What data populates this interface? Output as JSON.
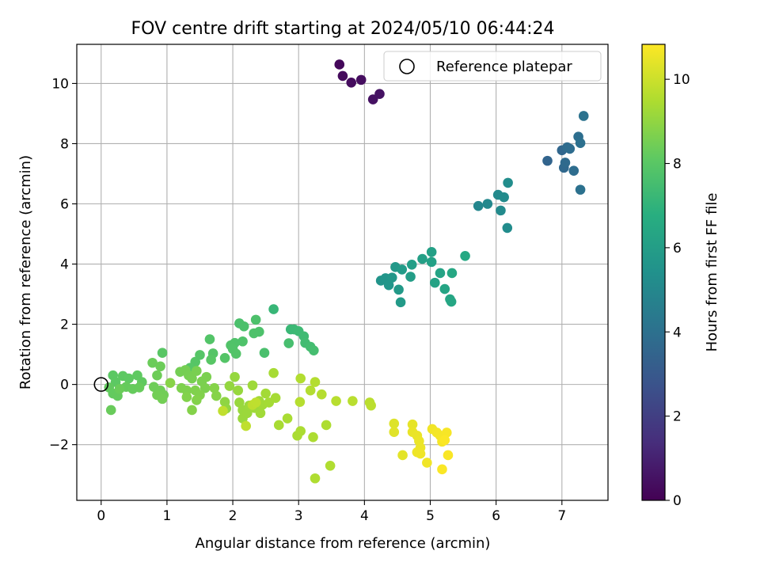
{
  "chart_data": {
    "type": "scatter",
    "title": "FOV centre drift starting at 2024/05/10 06:44:24",
    "xlabel": "Angular distance from reference (arcmin)",
    "ylabel": "Rotation from reference (arcmin)",
    "xlim": [
      -0.37,
      7.7
    ],
    "ylim": [
      -3.85,
      11.3
    ],
    "xticks": [
      0,
      1,
      2,
      3,
      4,
      5,
      6,
      7
    ],
    "xtick_labels": [
      "0",
      "1",
      "2",
      "3",
      "4",
      "5",
      "6",
      "7"
    ],
    "yticks": [
      -2,
      0,
      2,
      4,
      6,
      8,
      10
    ],
    "ytick_labels": [
      "−2",
      "0",
      "2",
      "4",
      "6",
      "8",
      "10"
    ],
    "grid": true,
    "legend_position": "top-right",
    "reference": {
      "name": "Reference platepar",
      "x": 0,
      "y": 0
    },
    "colorbar": {
      "label": "Hours from first FF file",
      "colormap": "viridis",
      "range": [
        0,
        10.83
      ],
      "ticks": [
        0,
        2,
        4,
        6,
        8,
        10
      ],
      "tick_labels": [
        "0",
        "2",
        "4",
        "6",
        "8",
        "10"
      ]
    },
    "points": [
      {
        "x": 3.62,
        "y": 10.63,
        "t": 0.2
      },
      {
        "x": 3.67,
        "y": 10.25,
        "t": 0.3
      },
      {
        "x": 3.8,
        "y": 10.03,
        "t": 0.35
      },
      {
        "x": 3.95,
        "y": 10.12,
        "t": 0.4
      },
      {
        "x": 4.13,
        "y": 9.47,
        "t": 0.5
      },
      {
        "x": 4.23,
        "y": 9.65,
        "t": 0.55
      },
      {
        "x": 6.78,
        "y": 7.43,
        "t": 3.5
      },
      {
        "x": 7.0,
        "y": 7.78,
        "t": 3.6
      },
      {
        "x": 7.03,
        "y": 7.2,
        "t": 3.7
      },
      {
        "x": 7.05,
        "y": 7.37,
        "t": 3.75
      },
      {
        "x": 7.08,
        "y": 7.88,
        "t": 3.8
      },
      {
        "x": 7.12,
        "y": 7.83,
        "t": 3.85
      },
      {
        "x": 7.18,
        "y": 7.1,
        "t": 3.9
      },
      {
        "x": 7.25,
        "y": 8.23,
        "t": 3.95
      },
      {
        "x": 7.28,
        "y": 8.02,
        "t": 4.0
      },
      {
        "x": 7.28,
        "y": 6.47,
        "t": 4.05
      },
      {
        "x": 7.33,
        "y": 8.92,
        "t": 4.1
      },
      {
        "x": 5.73,
        "y": 5.93,
        "t": 5.0
      },
      {
        "x": 5.87,
        "y": 6.0,
        "t": 5.05
      },
      {
        "x": 6.03,
        "y": 6.3,
        "t": 5.1
      },
      {
        "x": 6.07,
        "y": 5.78,
        "t": 5.15
      },
      {
        "x": 6.12,
        "y": 6.22,
        "t": 5.2
      },
      {
        "x": 6.17,
        "y": 5.2,
        "t": 5.25
      },
      {
        "x": 6.18,
        "y": 6.7,
        "t": 5.3
      },
      {
        "x": 4.25,
        "y": 3.45,
        "t": 5.6
      },
      {
        "x": 4.32,
        "y": 3.53,
        "t": 5.65
      },
      {
        "x": 4.37,
        "y": 3.3,
        "t": 5.7
      },
      {
        "x": 4.42,
        "y": 3.55,
        "t": 5.75
      },
      {
        "x": 4.47,
        "y": 3.9,
        "t": 5.8
      },
      {
        "x": 4.52,
        "y": 3.15,
        "t": 5.85
      },
      {
        "x": 4.55,
        "y": 2.73,
        "t": 5.9
      },
      {
        "x": 4.57,
        "y": 3.82,
        "t": 5.95
      },
      {
        "x": 4.7,
        "y": 3.58,
        "t": 6.0
      },
      {
        "x": 4.72,
        "y": 3.98,
        "t": 6.05
      },
      {
        "x": 4.88,
        "y": 4.17,
        "t": 6.1
      },
      {
        "x": 5.02,
        "y": 4.4,
        "t": 6.15
      },
      {
        "x": 5.02,
        "y": 4.07,
        "t": 6.2
      },
      {
        "x": 5.07,
        "y": 3.38,
        "t": 6.25
      },
      {
        "x": 5.15,
        "y": 3.7,
        "t": 6.3
      },
      {
        "x": 5.22,
        "y": 3.17,
        "t": 6.35
      },
      {
        "x": 5.3,
        "y": 2.83,
        "t": 6.4
      },
      {
        "x": 5.32,
        "y": 2.75,
        "t": 6.45
      },
      {
        "x": 5.33,
        "y": 3.7,
        "t": 6.5
      },
      {
        "x": 5.53,
        "y": 4.27,
        "t": 6.55
      },
      {
        "x": 2.62,
        "y": 2.5,
        "t": 7.2
      },
      {
        "x": 2.88,
        "y": 1.83,
        "t": 7.25
      },
      {
        "x": 2.93,
        "y": 1.83,
        "t": 7.3
      },
      {
        "x": 3.0,
        "y": 1.77,
        "t": 7.35
      },
      {
        "x": 3.08,
        "y": 1.6,
        "t": 7.4
      },
      {
        "x": 3.1,
        "y": 1.38,
        "t": 7.45
      },
      {
        "x": 3.18,
        "y": 1.25,
        "t": 7.5
      },
      {
        "x": 3.23,
        "y": 1.13,
        "t": 7.55
      },
      {
        "x": 2.85,
        "y": 1.37,
        "t": 7.6
      },
      {
        "x": 2.48,
        "y": 1.05,
        "t": 7.65
      },
      {
        "x": 2.1,
        "y": 2.03,
        "t": 7.7
      },
      {
        "x": 2.17,
        "y": 1.93,
        "t": 7.72
      },
      {
        "x": 2.35,
        "y": 2.15,
        "t": 7.74
      },
      {
        "x": 2.4,
        "y": 1.75,
        "t": 7.76
      },
      {
        "x": 2.32,
        "y": 1.7,
        "t": 7.78
      },
      {
        "x": 2.15,
        "y": 1.43,
        "t": 7.8
      },
      {
        "x": 2.03,
        "y": 1.38,
        "t": 7.82
      },
      {
        "x": 1.97,
        "y": 1.3,
        "t": 7.84
      },
      {
        "x": 2.0,
        "y": 1.18,
        "t": 7.86
      },
      {
        "x": 2.05,
        "y": 1.02,
        "t": 7.88
      },
      {
        "x": 1.65,
        "y": 1.5,
        "t": 7.9
      },
      {
        "x": 1.88,
        "y": 0.88,
        "t": 7.92
      },
      {
        "x": 1.7,
        "y": 1.03,
        "t": 7.94
      },
      {
        "x": 1.5,
        "y": 0.98,
        "t": 7.96
      },
      {
        "x": 1.43,
        "y": 0.75,
        "t": 7.98
      },
      {
        "x": 1.35,
        "y": 0.55,
        "t": 8.0
      },
      {
        "x": 1.67,
        "y": 0.82,
        "t": 8.02
      },
      {
        "x": 0.93,
        "y": 1.05,
        "t": 8.04
      },
      {
        "x": 0.18,
        "y": 0.3,
        "t": 8.1
      },
      {
        "x": 0.22,
        "y": 0.08,
        "t": 8.12
      },
      {
        "x": 0.33,
        "y": 0.28,
        "t": 8.14
      },
      {
        "x": 0.42,
        "y": 0.2,
        "t": 8.16
      },
      {
        "x": 0.55,
        "y": 0.3,
        "t": 8.18
      },
      {
        "x": 0.62,
        "y": 0.08,
        "t": 8.2
      },
      {
        "x": 0.12,
        "y": -0.1,
        "t": 8.22
      },
      {
        "x": 0.18,
        "y": -0.3,
        "t": 8.24
      },
      {
        "x": 0.25,
        "y": -0.38,
        "t": 8.26
      },
      {
        "x": 0.38,
        "y": -0.08,
        "t": 8.28
      },
      {
        "x": 0.48,
        "y": -0.15,
        "t": 8.3
      },
      {
        "x": 0.58,
        "y": -0.1,
        "t": 8.32
      },
      {
        "x": 0.15,
        "y": -0.85,
        "t": 8.34
      },
      {
        "x": 0.28,
        "y": -0.15,
        "t": 8.36
      },
      {
        "x": 0.78,
        "y": 0.72,
        "t": 8.38
      },
      {
        "x": 0.9,
        "y": 0.6,
        "t": 8.4
      },
      {
        "x": 0.85,
        "y": 0.3,
        "t": 8.42
      },
      {
        "x": 0.8,
        "y": -0.08,
        "t": 8.44
      },
      {
        "x": 0.9,
        "y": -0.2,
        "t": 8.46
      },
      {
        "x": 0.95,
        "y": -0.35,
        "t": 8.48
      },
      {
        "x": 0.85,
        "y": -0.35,
        "t": 8.5
      },
      {
        "x": 0.93,
        "y": -0.48,
        "t": 8.52
      },
      {
        "x": 1.2,
        "y": 0.42,
        "t": 8.54
      },
      {
        "x": 1.28,
        "y": 0.48,
        "t": 8.56
      },
      {
        "x": 1.33,
        "y": 0.3,
        "t": 8.58
      },
      {
        "x": 1.38,
        "y": 0.2,
        "t": 8.6
      },
      {
        "x": 1.45,
        "y": 0.45,
        "t": 8.62
      },
      {
        "x": 1.53,
        "y": 0.1,
        "t": 8.64
      },
      {
        "x": 1.6,
        "y": 0.25,
        "t": 8.66
      },
      {
        "x": 1.58,
        "y": -0.12,
        "t": 8.68
      },
      {
        "x": 1.22,
        "y": -0.12,
        "t": 8.7
      },
      {
        "x": 1.3,
        "y": -0.2,
        "t": 8.72
      },
      {
        "x": 1.43,
        "y": -0.2,
        "t": 8.74
      },
      {
        "x": 1.5,
        "y": -0.35,
        "t": 8.76
      },
      {
        "x": 1.3,
        "y": -0.42,
        "t": 8.78
      },
      {
        "x": 1.45,
        "y": -0.52,
        "t": 8.8
      },
      {
        "x": 1.38,
        "y": -0.85,
        "t": 8.82
      },
      {
        "x": 1.72,
        "y": -0.12,
        "t": 8.84
      },
      {
        "x": 1.75,
        "y": -0.38,
        "t": 8.86
      },
      {
        "x": 1.05,
        "y": 0.05,
        "t": 8.88
      },
      {
        "x": 1.88,
        "y": -0.58,
        "t": 9.0
      },
      {
        "x": 1.9,
        "y": -0.8,
        "t": 9.05
      },
      {
        "x": 1.95,
        "y": -0.05,
        "t": 9.1
      },
      {
        "x": 2.03,
        "y": 0.25,
        "t": 9.12
      },
      {
        "x": 2.08,
        "y": -0.2,
        "t": 9.14
      },
      {
        "x": 2.1,
        "y": -0.6,
        "t": 9.16
      },
      {
        "x": 2.15,
        "y": -0.85,
        "t": 9.18
      },
      {
        "x": 2.15,
        "y": -1.13,
        "t": 9.2
      },
      {
        "x": 2.22,
        "y": -0.95,
        "t": 9.22
      },
      {
        "x": 2.25,
        "y": -0.7,
        "t": 9.24
      },
      {
        "x": 2.3,
        "y": -0.03,
        "t": 9.26
      },
      {
        "x": 2.33,
        "y": -0.78,
        "t": 9.28
      },
      {
        "x": 2.4,
        "y": -0.55,
        "t": 9.3
      },
      {
        "x": 2.42,
        "y": -0.95,
        "t": 9.32
      },
      {
        "x": 2.45,
        "y": -0.68,
        "t": 9.34
      },
      {
        "x": 2.5,
        "y": -0.3,
        "t": 9.36
      },
      {
        "x": 2.55,
        "y": -0.6,
        "t": 9.38
      },
      {
        "x": 2.65,
        "y": -0.45,
        "t": 9.4
      },
      {
        "x": 2.62,
        "y": 0.38,
        "t": 9.42
      },
      {
        "x": 2.7,
        "y": -1.35,
        "t": 9.44
      },
      {
        "x": 2.83,
        "y": -1.13,
        "t": 9.46
      },
      {
        "x": 2.98,
        "y": -1.7,
        "t": 9.48
      },
      {
        "x": 3.03,
        "y": -1.55,
        "t": 9.5
      },
      {
        "x": 3.22,
        "y": -1.75,
        "t": 9.52
      },
      {
        "x": 3.42,
        "y": -1.35,
        "t": 9.54
      },
      {
        "x": 3.25,
        "y": -3.12,
        "t": 9.56
      },
      {
        "x": 3.48,
        "y": -2.7,
        "t": 9.58
      },
      {
        "x": 3.03,
        "y": 0.2,
        "t": 9.6
      },
      {
        "x": 3.18,
        "y": -0.2,
        "t": 9.62
      },
      {
        "x": 3.25,
        "y": 0.08,
        "t": 9.64
      },
      {
        "x": 3.35,
        "y": -0.33,
        "t": 9.66
      },
      {
        "x": 3.02,
        "y": -0.58,
        "t": 9.68
      },
      {
        "x": 3.57,
        "y": -0.55,
        "t": 9.7
      },
      {
        "x": 3.82,
        "y": -0.55,
        "t": 9.72
      },
      {
        "x": 4.08,
        "y": -0.6,
        "t": 9.74
      },
      {
        "x": 4.1,
        "y": -0.7,
        "t": 9.76
      },
      {
        "x": 2.3,
        "y": -0.68,
        "t": 9.78
      },
      {
        "x": 2.35,
        "y": -0.6,
        "t": 9.8
      },
      {
        "x": 2.2,
        "y": -1.38,
        "t": 9.82
      },
      {
        "x": 1.85,
        "y": -0.88,
        "t": 9.84
      },
      {
        "x": 4.45,
        "y": -1.3,
        "t": 10.3
      },
      {
        "x": 4.45,
        "y": -1.58,
        "t": 10.35
      },
      {
        "x": 4.58,
        "y": -2.35,
        "t": 10.4
      },
      {
        "x": 4.73,
        "y": -1.33,
        "t": 10.45
      },
      {
        "x": 4.73,
        "y": -1.58,
        "t": 10.5
      },
      {
        "x": 4.8,
        "y": -1.7,
        "t": 10.52
      },
      {
        "x": 4.83,
        "y": -1.88,
        "t": 10.54
      },
      {
        "x": 4.85,
        "y": -2.1,
        "t": 10.56
      },
      {
        "x": 4.8,
        "y": -2.25,
        "t": 10.58
      },
      {
        "x": 4.85,
        "y": -2.3,
        "t": 10.6
      },
      {
        "x": 4.95,
        "y": -2.6,
        "t": 10.62
      },
      {
        "x": 5.03,
        "y": -1.48,
        "t": 10.64
      },
      {
        "x": 5.1,
        "y": -1.6,
        "t": 10.66
      },
      {
        "x": 5.15,
        "y": -1.7,
        "t": 10.68
      },
      {
        "x": 5.18,
        "y": -1.9,
        "t": 10.7
      },
      {
        "x": 5.2,
        "y": -1.75,
        "t": 10.72
      },
      {
        "x": 5.25,
        "y": -1.6,
        "t": 10.74
      },
      {
        "x": 5.27,
        "y": -2.35,
        "t": 10.76
      },
      {
        "x": 5.18,
        "y": -2.82,
        "t": 10.78
      },
      {
        "x": 5.22,
        "y": -1.85,
        "t": 10.8
      }
    ]
  }
}
